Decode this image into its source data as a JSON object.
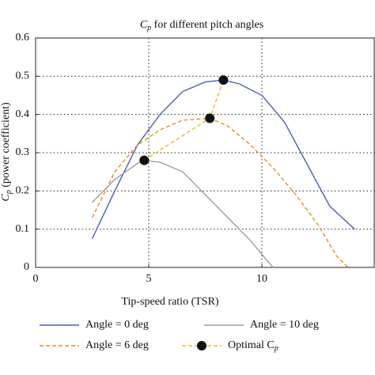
{
  "chart_data": {
    "type": "line",
    "title": {
      "symbol": "C",
      "subscript": "p",
      "text": " for different pitch angles"
    },
    "xlabel": "Tip-speed ratio (TSR)",
    "ylabel": {
      "symbol": "C",
      "subscript": "p",
      "text": " (power coefficient)"
    },
    "xlim": [
      0,
      15
    ],
    "xticks": [
      0,
      5,
      10
    ],
    "ylim": [
      0,
      0.6
    ],
    "yticks": [
      0,
      0.1,
      0.2,
      0.3,
      0.4,
      0.5,
      0.6
    ],
    "grid": true,
    "series": [
      {
        "name": "Angle = 0 deg",
        "color": "#4a5fb5",
        "dash": false,
        "markers": false,
        "x": [
          2.5,
          3.5,
          4.5,
          5.5,
          6.5,
          7.5,
          8.3,
          9,
          10,
          11,
          12,
          13,
          14.1
        ],
        "values": [
          0.075,
          0.2,
          0.32,
          0.4,
          0.46,
          0.485,
          0.49,
          0.48,
          0.45,
          0.38,
          0.27,
          0.16,
          0.1
        ]
      },
      {
        "name": "Angle = 6 deg",
        "color": "#f08a24",
        "dash": true,
        "markers": false,
        "x": [
          2.5,
          3.5,
          4.5,
          5.5,
          6.5,
          7.7,
          8.5,
          9.5,
          10.5,
          11.5,
          12.5,
          13.3,
          13.8
        ],
        "values": [
          0.13,
          0.25,
          0.32,
          0.36,
          0.385,
          0.39,
          0.37,
          0.32,
          0.26,
          0.19,
          0.11,
          0.03,
          0
        ]
      },
      {
        "name": "Angle = 10 deg",
        "color": "#a89898",
        "dash": false,
        "markers": false,
        "x": [
          2.5,
          3.5,
          4.7,
          5.5,
          6.5,
          7.5,
          8.5,
          9.5,
          10.2,
          10.5
        ],
        "values": [
          0.17,
          0.23,
          0.28,
          0.275,
          0.25,
          0.19,
          0.13,
          0.07,
          0.02,
          0
        ]
      },
      {
        "name": "Optimal C",
        "name_subscript": "p",
        "color": "#f5b52a",
        "dash": true,
        "markers": true,
        "x": [
          4.8,
          7.7,
          8.3
        ],
        "values": [
          0.28,
          0.39,
          0.49
        ]
      }
    ]
  }
}
